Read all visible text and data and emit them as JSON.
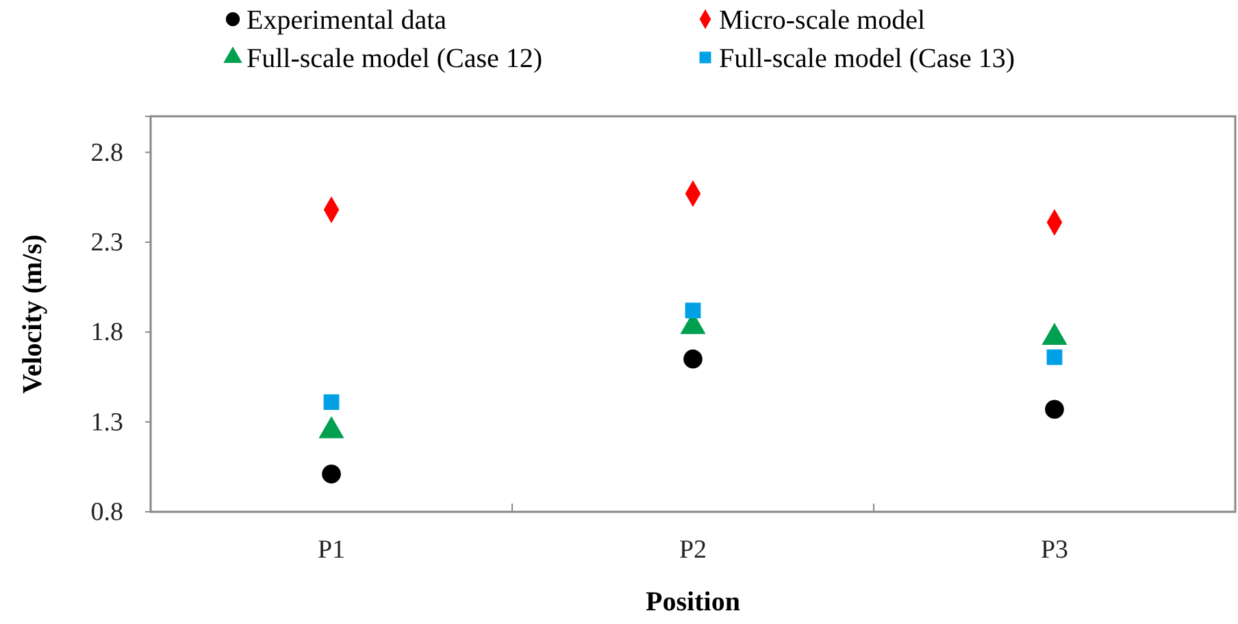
{
  "chart_data": {
    "type": "scatter",
    "xlabel": "Position",
    "ylabel": "Velocity (m/s)",
    "categories": [
      "P1",
      "P2",
      "P3"
    ],
    "ylim": [
      0.8,
      3.0
    ],
    "yticks": [
      0.8,
      1.3,
      1.8,
      2.3,
      2.8
    ],
    "grid": false,
    "legend": "top",
    "series": [
      {
        "name": "Experimental data",
        "color": "#000000",
        "marker": "circle",
        "values": [
          1.01,
          1.65,
          1.37
        ]
      },
      {
        "name": "Micro-scale model",
        "color": "#ff0000",
        "marker": "diamond",
        "values": [
          2.48,
          2.57,
          2.41
        ]
      },
      {
        "name": "Full-scale model (Case 12)",
        "color": "#00a050",
        "marker": "triangle",
        "values": [
          1.25,
          1.83,
          1.77
        ]
      },
      {
        "name": "Full-scale model (Case 13)",
        "color": "#00a0e6",
        "marker": "square",
        "values": [
          1.41,
          1.92,
          1.66
        ]
      }
    ]
  }
}
